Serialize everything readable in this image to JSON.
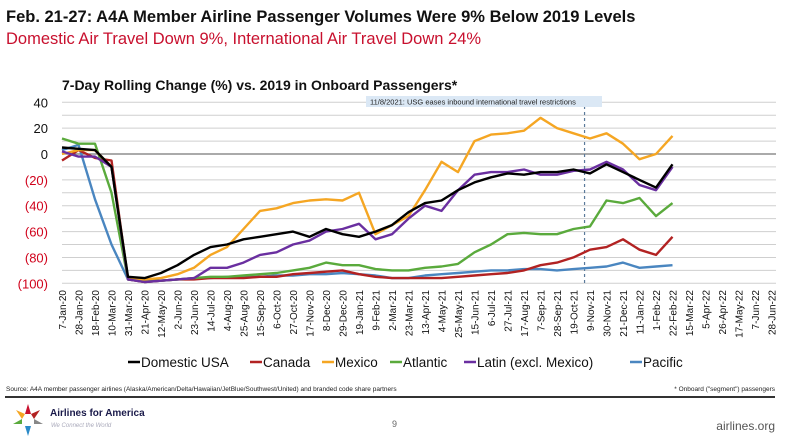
{
  "header": {
    "title": "Feb. 21-27: A4A Member Airline Passenger Volumes Were 9% Below 2019 Levels",
    "subtitle": "Domestic Air Travel Down 9%, International Air Travel Down 24%"
  },
  "chart_data": {
    "type": "line",
    "title": "7-Day Rolling Change (%) vs. 2019 in Onboard Passengers*",
    "xlabel": "",
    "ylabel": "",
    "ylim": [
      -100,
      40
    ],
    "yticks": [
      40,
      20,
      0,
      -20,
      -40,
      -60,
      -80,
      -100
    ],
    "ytick_labels": [
      "40",
      "20",
      "0",
      "(20)",
      "(40)",
      "(60)",
      "(80)",
      "(100)"
    ],
    "grid": true,
    "x_tick_labels": [
      "7-Jan-20",
      "28-Jan-20",
      "18-Feb-20",
      "10-Mar-20",
      "31-Mar-20",
      "21-Apr-20",
      "12-May-20",
      "2-Jun-20",
      "23-Jun-20",
      "14-Jul-20",
      "4-Aug-20",
      "25-Aug-20",
      "15-Sep-20",
      "6-Oct-20",
      "27-Oct-20",
      "17-Nov-20",
      "8-Dec-20",
      "29-Dec-20",
      "19-Jan-21",
      "9-Feb-21",
      "2-Mar-21",
      "23-Mar-21",
      "13-Apr-21",
      "4-May-21",
      "25-May-21",
      "15-Jun-21",
      "6-Jul-21",
      "27-Jul-21",
      "17-Aug-21",
      "7-Sep-21",
      "28-Sep-21",
      "19-Oct-21",
      "9-Nov-21",
      "30-Nov-21",
      "21-Dec-21",
      "11-Jan-22",
      "1-Feb-22",
      "22-Feb-22",
      "15-Mar-22",
      "5-Apr-22",
      "26-Apr-22",
      "17-May-22",
      "7-Jun-22",
      "28-Jun-22"
    ],
    "x_note": "values sampled at each x tick date (every 3 weeks), 7-Jan-20 through 22-Feb-22",
    "annotation": {
      "label": "11/8/2021: USG eases inbound international travel restrictions",
      "x_date": "8-Nov-21"
    },
    "legend_position": "bottom",
    "series": [
      {
        "name": "Domestic USA",
        "color": "#000000",
        "values": [
          5,
          4,
          3,
          -10,
          -95,
          -96,
          -92,
          -86,
          -78,
          -72,
          -70,
          -66,
          -64,
          -62,
          -60,
          -64,
          -58,
          -62,
          -64,
          -60,
          -55,
          -45,
          -38,
          -36,
          -28,
          -22,
          -18,
          -15,
          -16,
          -14,
          -14,
          -12,
          -15,
          -8,
          -14,
          -20,
          -26,
          -8
        ]
      },
      {
        "name": "Canada",
        "color": "#b22222",
        "values": [
          -5,
          3,
          -3,
          -5,
          -97,
          -99,
          -98,
          -97,
          -97,
          -96,
          -96,
          -96,
          -95,
          -95,
          -93,
          -92,
          -91,
          -90,
          -93,
          -95,
          -96,
          -96,
          -96,
          -96,
          -95,
          -94,
          -93,
          -92,
          -90,
          -86,
          -84,
          -80,
          -74,
          -72,
          -66,
          -74,
          -78,
          -64
        ]
      },
      {
        "name": "Mexico",
        "color": "#f5a623",
        "values": [
          0,
          3,
          3,
          -10,
          -96,
          -97,
          -96,
          -93,
          -88,
          -78,
          -72,
          -58,
          -44,
          -42,
          -38,
          -36,
          -35,
          -36,
          -30,
          -62,
          -55,
          -48,
          -28,
          -6,
          -14,
          10,
          15,
          16,
          18,
          28,
          20,
          16,
          12,
          16,
          8,
          -4,
          0,
          14
        ]
      },
      {
        "name": "Atlantic",
        "color": "#5aaa3c",
        "values": [
          12,
          8,
          8,
          -30,
          -97,
          -98,
          -98,
          -97,
          -96,
          -95,
          -95,
          -94,
          -93,
          -92,
          -90,
          -88,
          -84,
          -86,
          -86,
          -89,
          -90,
          -90,
          -88,
          -87,
          -85,
          -76,
          -70,
          -62,
          -61,
          -62,
          -62,
          -58,
          -56,
          -36,
          -38,
          -34,
          -48,
          -38
        ]
      },
      {
        "name": "Latin (excl. Mexico)",
        "color": "#6a2fa0",
        "values": [
          2,
          -2,
          -2,
          -10,
          -97,
          -99,
          -98,
          -97,
          -96,
          -88,
          -88,
          -84,
          -78,
          -76,
          -70,
          -67,
          -60,
          -58,
          -54,
          -66,
          -62,
          -50,
          -40,
          -44,
          -28,
          -16,
          -14,
          -14,
          -12,
          -16,
          -16,
          -13,
          -12,
          -6,
          -12,
          -24,
          -28,
          -10
        ]
      },
      {
        "name": "Pacific",
        "color": "#4a86c0",
        "values": [
          3,
          7,
          -35,
          -70,
          -97,
          -99,
          -98,
          -97,
          -96,
          -96,
          -95,
          -95,
          -95,
          -94,
          -94,
          -93,
          -93,
          -92,
          -93,
          -94,
          -96,
          -96,
          -94,
          -93,
          -92,
          -91,
          -90,
          -90,
          -89,
          -89,
          -90,
          -89,
          -88,
          -87,
          -84,
          -88,
          -87,
          -86
        ]
      }
    ]
  },
  "footer": {
    "source": "Source: A4A member passenger airlines (Alaska/American/Delta/Hawaiian/JetBlue/Southwest/United) and branded code share partners",
    "note": "* Onboard (\"segment\") passengers",
    "brand": "Airlines for America",
    "tagline": "We Connect the World",
    "page": "9",
    "site": "airlines.org"
  }
}
